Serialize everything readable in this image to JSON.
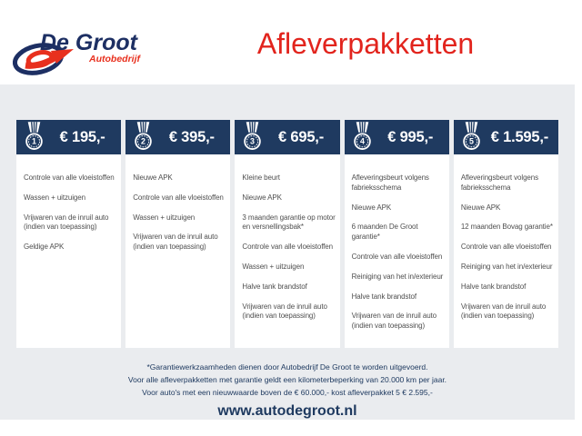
{
  "brand": {
    "name": "De Groot",
    "subtitle": "Autobedrijf"
  },
  "page_title": "Afleverpakketten",
  "packages": [
    {
      "number": "1",
      "price": "€ 195,-",
      "items": [
        "Controle van alle vloeistoffen",
        "Wassen + uitzuigen",
        "Vrijwaren van de inruil auto (indien van toepassing)",
        "Geldige APK"
      ]
    },
    {
      "number": "2",
      "price": "€ 395,-",
      "items": [
        "Nieuwe APK",
        "Controle van alle vloeistoffen",
        "Wassen + uitzuigen",
        "Vrijwaren van de inruil auto (indien van toepassing)"
      ]
    },
    {
      "number": "3",
      "price": "€ 695,-",
      "items": [
        "Kleine beurt",
        "Nieuwe APK",
        "3 maanden garantie op motor en versnellingsbak*",
        "Controle van alle vloeistoffen",
        "Wassen + uitzuigen",
        "Halve tank brandstof",
        "Vrijwaren van de inruil auto (indien van toepassing)"
      ]
    },
    {
      "number": "4",
      "price": "€ 995,-",
      "items": [
        "Afleveringsbeurt volgens fabrieksschema",
        "Nieuwe APK",
        "6 maanden De Groot garantie*",
        "Controle van alle vloeistoffen",
        "Reiniging van het in/exterieur",
        "Halve tank brandstof",
        "Vrijwaren van de inruil auto (indien van toepassing)"
      ]
    },
    {
      "number": "5",
      "price": "€ 1.595,-",
      "items": [
        "Afleveringsbeurt volgens fabrieksschema",
        "Nieuwe APK",
        "12 maanden Bovag garantie*",
        "Controle van alle vloeistoffen",
        "Reiniging van het in/exterieur",
        "Halve tank brandstof",
        "Vrijwaren van de inruil auto (indien van toepassing)"
      ]
    }
  ],
  "footnotes": [
    "*Garantiewerkzaamheden dienen door Autobedrijf De Groot te worden uitgevoerd.",
    "Voor alle afleverpakketten met garantie geldt een kilometerbeperking van 20.000 km per jaar.",
    "Voor auto's met een nieuwwaarde boven de € 60.000,- kost afleverpakket 5 € 2.595,-"
  ],
  "website": "www.autodegroot.nl",
  "colors": {
    "navy": "#1f3a60",
    "red": "#e2241d",
    "logo_navy": "#1d2f63",
    "logo_red": "#e8301e",
    "text": "#4f4f4f",
    "bg_gray": "#eaecef"
  }
}
